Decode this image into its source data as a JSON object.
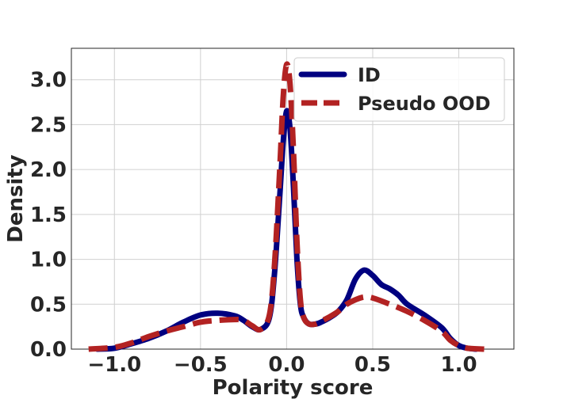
{
  "chart_data": {
    "type": "line",
    "xlabel": "Polarity score",
    "ylabel": "Density",
    "xlim": [
      -1.25,
      1.32
    ],
    "ylim": [
      0,
      3.35
    ],
    "xticks": [
      -1.0,
      -0.5,
      0.0,
      0.5,
      1.0
    ],
    "xtick_labels": [
      "−1.0",
      "−0.5",
      "0.0",
      "0.5",
      "1.0"
    ],
    "yticks": [
      0.0,
      0.5,
      1.0,
      1.5,
      2.0,
      2.5,
      3.0
    ],
    "ytick_labels": [
      "0.0",
      "0.5",
      "1.0",
      "1.5",
      "2.0",
      "2.5",
      "3.0"
    ],
    "grid": true,
    "legend_position": "top-right",
    "series": [
      {
        "name": "ID",
        "color": "#000080",
        "style": "solid",
        "x": [
          -1.1,
          -1.0,
          -0.9,
          -0.8,
          -0.7,
          -0.6,
          -0.5,
          -0.4,
          -0.3,
          -0.25,
          -0.2,
          -0.15,
          -0.1,
          -0.07,
          -0.04,
          -0.02,
          0.0,
          0.02,
          0.04,
          0.06,
          0.08,
          0.1,
          0.13,
          0.17,
          0.2,
          0.25,
          0.3,
          0.35,
          0.4,
          0.45,
          0.5,
          0.55,
          0.6,
          0.65,
          0.7,
          0.8,
          0.9,
          0.95,
          1.0,
          1.05,
          1.1
        ],
        "y": [
          0.0,
          0.01,
          0.06,
          0.12,
          0.2,
          0.3,
          0.38,
          0.4,
          0.37,
          0.32,
          0.25,
          0.22,
          0.35,
          0.85,
          1.7,
          2.3,
          2.65,
          2.45,
          1.8,
          1.0,
          0.5,
          0.35,
          0.28,
          0.28,
          0.3,
          0.35,
          0.42,
          0.55,
          0.78,
          0.88,
          0.82,
          0.72,
          0.67,
          0.6,
          0.5,
          0.38,
          0.24,
          0.12,
          0.04,
          0.01,
          0.0
        ]
      },
      {
        "name": "Pseudo OOD",
        "color": "#b22222",
        "style": "dashed",
        "x": [
          -1.15,
          -1.0,
          -0.9,
          -0.8,
          -0.7,
          -0.6,
          -0.5,
          -0.4,
          -0.3,
          -0.25,
          -0.2,
          -0.15,
          -0.1,
          -0.07,
          -0.04,
          -0.02,
          0.0,
          0.02,
          0.04,
          0.06,
          0.08,
          0.1,
          0.13,
          0.17,
          0.2,
          0.25,
          0.3,
          0.35,
          0.4,
          0.45,
          0.5,
          0.6,
          0.7,
          0.8,
          0.9,
          0.95,
          1.0,
          1.05,
          1.15
        ],
        "y": [
          0.0,
          0.02,
          0.07,
          0.14,
          0.2,
          0.25,
          0.3,
          0.32,
          0.33,
          0.32,
          0.26,
          0.22,
          0.38,
          0.95,
          2.0,
          2.8,
          3.17,
          2.95,
          2.2,
          1.2,
          0.55,
          0.35,
          0.28,
          0.28,
          0.31,
          0.36,
          0.42,
          0.5,
          0.55,
          0.58,
          0.57,
          0.5,
          0.42,
          0.32,
          0.2,
          0.1,
          0.04,
          0.01,
          0.0
        ]
      }
    ]
  }
}
